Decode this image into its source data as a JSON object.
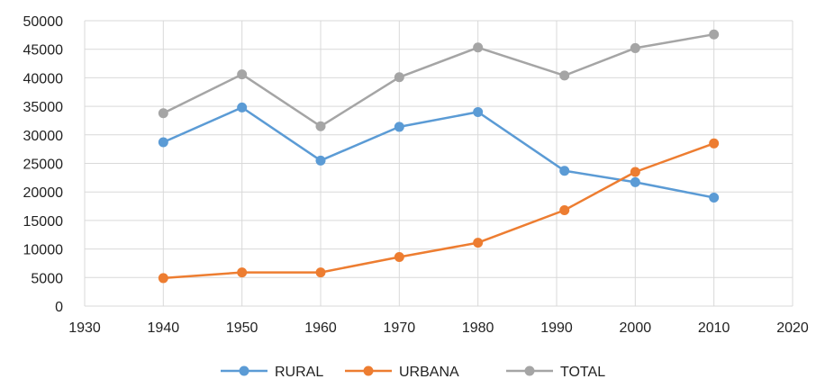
{
  "chart_data": {
    "type": "line",
    "title": "",
    "xlabel": "",
    "ylabel": "",
    "xlim": [
      1930,
      2020
    ],
    "ylim": [
      0,
      50000
    ],
    "x_ticks": [
      "1930",
      "1940",
      "1950",
      "1960",
      "1970",
      "1980",
      "1990",
      "2000",
      "2010",
      "2020"
    ],
    "y_ticks": [
      "0",
      "5000",
      "10000",
      "15000",
      "20000",
      "25000",
      "30000",
      "35000",
      "40000",
      "45000",
      "50000"
    ],
    "grid": true,
    "legend_position": "bottom",
    "x": [
      1940,
      1950,
      1960,
      1970,
      1980,
      1991,
      2000,
      2010
    ],
    "series": [
      {
        "name": "RURAL",
        "color": "#5b9bd5",
        "values": [
          28700,
          34800,
          25500,
          31400,
          34000,
          23700,
          21700,
          19000
        ]
      },
      {
        "name": "URBANA",
        "color": "#ed7d31",
        "values": [
          4900,
          5900,
          5900,
          8600,
          11100,
          16800,
          23500,
          28500
        ]
      },
      {
        "name": "TOTAL",
        "color": "#a5a5a5",
        "values": [
          33800,
          40600,
          31500,
          40100,
          45300,
          40400,
          45200,
          47600
        ]
      }
    ]
  }
}
